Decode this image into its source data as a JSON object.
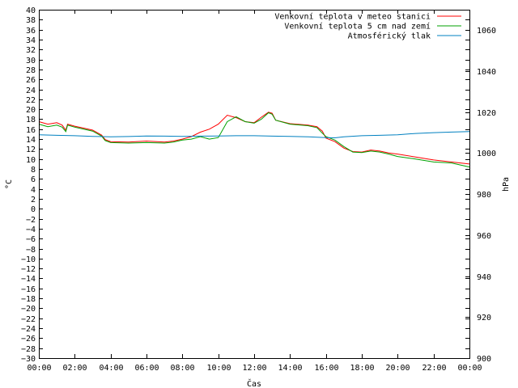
{
  "chart_data": {
    "type": "line",
    "title": "",
    "xlabel": "Čas",
    "ylabel": "°C",
    "y2label": "hPa",
    "xlim": [
      0,
      24
    ],
    "ylim": [
      -30,
      40
    ],
    "y2lim": [
      900,
      1070
    ],
    "x_ticks": [
      "00:00",
      "02:00",
      "04:00",
      "06:00",
      "08:00",
      "10:00",
      "12:00",
      "14:00",
      "16:00",
      "18:00",
      "20:00",
      "22:00",
      "00:00"
    ],
    "y_ticks": [
      40,
      38,
      36,
      34,
      32,
      30,
      28,
      26,
      24,
      22,
      20,
      18,
      16,
      14,
      12,
      10,
      8,
      6,
      4,
      2,
      0,
      -2,
      -4,
      -6,
      -8,
      -10,
      -12,
      -14,
      -16,
      -18,
      -20,
      -22,
      -24,
      -26,
      -28,
      -30
    ],
    "y2_ticks": [
      1060,
      1040,
      1020,
      1000,
      980,
      960,
      940,
      920,
      900
    ],
    "legend_position": "top-right",
    "series": [
      {
        "name": "Venkovní teplota v meteo stanici",
        "axis": "left",
        "color": "#ff0000",
        "points": [
          [
            0,
            17.5
          ],
          [
            0.5,
            17
          ],
          [
            1,
            17.3
          ],
          [
            1.3,
            16.8
          ],
          [
            1.5,
            15.8
          ],
          [
            1.6,
            17
          ],
          [
            2,
            16.6
          ],
          [
            2.5,
            16.2
          ],
          [
            3,
            15.8
          ],
          [
            3.5,
            14.8
          ],
          [
            3.7,
            13.9
          ],
          [
            4,
            13.5
          ],
          [
            5,
            13.4
          ],
          [
            6,
            13.6
          ],
          [
            7,
            13.4
          ],
          [
            7.5,
            13.6
          ],
          [
            8,
            14
          ],
          [
            8.5,
            14.5
          ],
          [
            9,
            15.4
          ],
          [
            9.5,
            16
          ],
          [
            10,
            17
          ],
          [
            10.5,
            18.8
          ],
          [
            11,
            18.3
          ],
          [
            11.5,
            17.5
          ],
          [
            12,
            17.3
          ],
          [
            12.4,
            18.4
          ],
          [
            12.8,
            19.4
          ],
          [
            13,
            19.2
          ],
          [
            13.2,
            17.8
          ],
          [
            14,
            17.1
          ],
          [
            15,
            16.8
          ],
          [
            15.5,
            16.5
          ],
          [
            15.8,
            15.6
          ],
          [
            16,
            14.2
          ],
          [
            16.5,
            13.5
          ],
          [
            17,
            12.2
          ],
          [
            17.5,
            11.5
          ],
          [
            18,
            11.4
          ],
          [
            18.5,
            11.8
          ],
          [
            19,
            11.6
          ],
          [
            19.5,
            11.2
          ],
          [
            20,
            11
          ],
          [
            21,
            10.4
          ],
          [
            22,
            9.8
          ],
          [
            23,
            9.4
          ],
          [
            24,
            9
          ]
        ]
      },
      {
        "name": "Venkovní teplota 5 cm nad zemí",
        "axis": "left",
        "color": "#00a000",
        "points": [
          [
            0,
            17
          ],
          [
            0.5,
            16.5
          ],
          [
            1,
            16.8
          ],
          [
            1.3,
            16.4
          ],
          [
            1.5,
            15.5
          ],
          [
            1.6,
            16.8
          ],
          [
            2,
            16.4
          ],
          [
            2.5,
            16
          ],
          [
            3,
            15.6
          ],
          [
            3.5,
            14.6
          ],
          [
            3.7,
            13.7
          ],
          [
            4,
            13.3
          ],
          [
            5,
            13.2
          ],
          [
            6,
            13.3
          ],
          [
            7,
            13.2
          ],
          [
            7.5,
            13.4
          ],
          [
            8,
            13.8
          ],
          [
            8.5,
            14
          ],
          [
            9,
            14.5
          ],
          [
            9.5,
            14
          ],
          [
            10,
            14.3
          ],
          [
            10.5,
            17.5
          ],
          [
            11,
            18.5
          ],
          [
            11.5,
            17.5
          ],
          [
            12,
            17.2
          ],
          [
            12.4,
            18
          ],
          [
            12.8,
            19.3
          ],
          [
            13,
            19
          ],
          [
            13.2,
            17.8
          ],
          [
            14,
            17
          ],
          [
            15,
            16.7
          ],
          [
            15.5,
            16.3
          ],
          [
            15.8,
            15.2
          ],
          [
            16,
            14.5
          ],
          [
            16.5,
            13.8
          ],
          [
            17,
            12.5
          ],
          [
            17.5,
            11.4
          ],
          [
            18,
            11.3
          ],
          [
            18.5,
            11.6
          ],
          [
            19,
            11.4
          ],
          [
            19.5,
            11
          ],
          [
            20,
            10.5
          ],
          [
            21,
            10
          ],
          [
            22,
            9.4
          ],
          [
            23,
            9.2
          ],
          [
            24,
            8.4
          ]
        ]
      },
      {
        "name": "Atmosférický tlak",
        "axis": "right",
        "color": "#0080c0",
        "points": [
          [
            0,
            1009
          ],
          [
            1,
            1008.7
          ],
          [
            2,
            1008.5
          ],
          [
            3,
            1008.2
          ],
          [
            4,
            1008
          ],
          [
            5,
            1008.1
          ],
          [
            6,
            1008.4
          ],
          [
            7,
            1008.3
          ],
          [
            8,
            1008.2
          ],
          [
            9,
            1008.3
          ],
          [
            10,
            1008.4
          ],
          [
            11,
            1008.5
          ],
          [
            12,
            1008.5
          ],
          [
            13,
            1008.3
          ],
          [
            14,
            1008.2
          ],
          [
            15,
            1008
          ],
          [
            16,
            1007.6
          ],
          [
            16.5,
            1007.5
          ],
          [
            17,
            1008
          ],
          [
            18,
            1008.5
          ],
          [
            19,
            1008.7
          ],
          [
            20,
            1009
          ],
          [
            21,
            1009.6
          ],
          [
            22,
            1010
          ],
          [
            23,
            1010.3
          ],
          [
            24,
            1010.5
          ]
        ]
      }
    ]
  }
}
